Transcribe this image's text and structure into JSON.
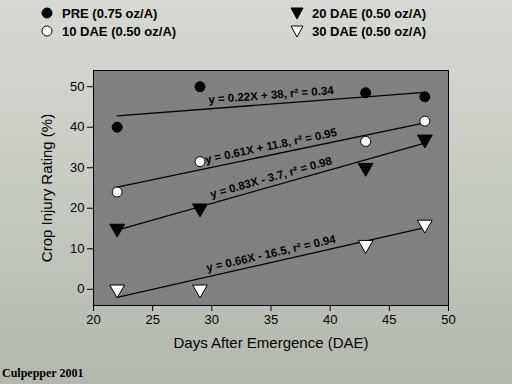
{
  "chart_data": {
    "type": "scatter",
    "x_label": "Days After Emergence (DAE)",
    "y_label": "Crop Injury Rating (%)",
    "caption": "Culpepper 2001",
    "legend": "top",
    "xlim": [
      20,
      50
    ],
    "xticks": [
      20,
      25,
      30,
      35,
      40,
      45,
      50
    ],
    "ylim": [
      -4,
      54
    ],
    "yticks": [
      0,
      10,
      20,
      30,
      40,
      50
    ],
    "x": [
      22,
      29,
      43,
      48
    ],
    "series": [
      {
        "name": "PRE (0.75 oz/A)",
        "color": "black",
        "marker": "circle",
        "values": [
          40,
          50,
          48.5,
          47.5
        ],
        "fit": {
          "x": [
            22,
            48
          ],
          "values": [
            42.8,
            48.6
          ],
          "label": "y = 0.22X + 38, r² = 0.34"
        }
      },
      {
        "name": "10 DAE (0.50 oz/A)",
        "color": "white",
        "marker": "circle",
        "values": [
          24,
          31.5,
          36.5,
          41.5
        ],
        "fit": {
          "x": [
            22,
            48
          ],
          "values": [
            25.2,
            41.1
          ],
          "label": "y = 0.61X + 11.8, r² = 0.95"
        }
      },
      {
        "name": "20 DAE (0.50 oz/A)",
        "color": "black",
        "marker": "triangle-down",
        "values": [
          15,
          20,
          30,
          37
        ],
        "fit": {
          "x": [
            22,
            48
          ],
          "values": [
            14.6,
            36.1
          ],
          "label": "y = 0.83X - 3.7, r² = 0.98"
        }
      },
      {
        "name": "30 DAE (0.50 oz/A)",
        "color": "white",
        "marker": "triangle-down",
        "values": [
          0,
          0,
          11,
          16
        ],
        "fit": {
          "x": [
            22,
            48
          ],
          "values": [
            -2.0,
            15.2
          ],
          "label": "y = 0.66X - 16.5, r² = 0.94"
        }
      }
    ]
  }
}
